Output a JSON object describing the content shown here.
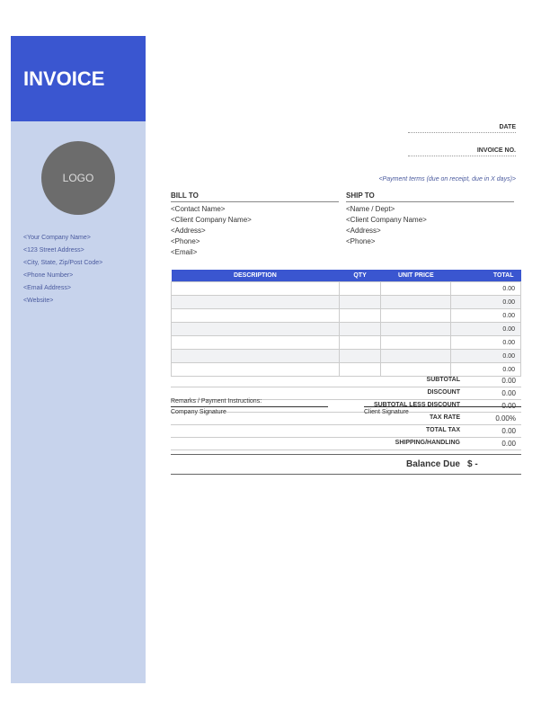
{
  "colors": {
    "primary": "#3a56d0",
    "sidebar_bg": "#c7d3ec",
    "logo_bg": "#6c6c6c",
    "placeholder_text": "#4a5a9e",
    "border": "#cccccc",
    "alt_row": "#f1f2f4"
  },
  "header": {
    "title": "INVOICE"
  },
  "logo": {
    "label": "LOGO"
  },
  "company": {
    "name": "<Your Company Name>",
    "street": "<123 Street Address>",
    "city": "<City, State, Zip/Post Code>",
    "phone": "<Phone Number>",
    "email": "<Email Address>",
    "website": "<Website>"
  },
  "meta": {
    "date_label": "DATE",
    "invoice_no_label": "INVOICE NO.",
    "payment_terms": "<Payment terms (due on receipt, due in X days)>"
  },
  "bill_to": {
    "heading": "BILL TO",
    "contact": "<Contact Name>",
    "client": "<Client Company Name>",
    "address": "<Address>",
    "phone": "<Phone>",
    "email": "<Email>"
  },
  "ship_to": {
    "heading": "SHIP TO",
    "name": "<Name / Dept>",
    "client": "<Client Company Name>",
    "address": "<Address>",
    "phone": "<Phone>"
  },
  "table": {
    "columns": [
      "DESCRIPTION",
      "QTY",
      "UNIT PRICE",
      "TOTAL"
    ],
    "rows": [
      [
        "",
        "",
        "",
        "0.00"
      ],
      [
        "",
        "",
        "",
        "0.00"
      ],
      [
        "",
        "",
        "",
        "0.00"
      ],
      [
        "",
        "",
        "",
        "0.00"
      ],
      [
        "",
        "",
        "",
        "0.00"
      ],
      [
        "",
        "",
        "",
        "0.00"
      ],
      [
        "",
        "",
        "",
        "0.00"
      ]
    ]
  },
  "remarks_label": "Remarks / Payment Instructions:",
  "totals": {
    "subtotal_label": "SUBTOTAL",
    "subtotal_value": "0.00",
    "discount_label": "DISCOUNT",
    "discount_value": "0.00",
    "less_label": "SUBTOTAL LESS DISCOUNT",
    "less_value": "0.00",
    "taxrate_label": "TAX RATE",
    "taxrate_value": "0.00%",
    "totaltax_label": "TOTAL TAX",
    "totaltax_value": "0.00",
    "shipping_label": "SHIPPING/HANDLING",
    "shipping_value": "0.00",
    "balance_label": "Balance Due",
    "balance_value": "$        -"
  },
  "signatures": {
    "company": "Company Signature",
    "client": "Client Signature"
  }
}
